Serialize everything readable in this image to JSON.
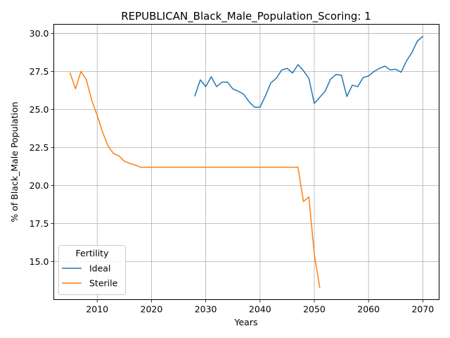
{
  "chart_data": {
    "type": "line",
    "title": "REPUBLICAN_Black_Male_Population_Scoring: 1",
    "xlabel": "Years",
    "ylabel": "% of Black_Male Population",
    "xlim": [
      2002,
      2073
    ],
    "ylim": [
      12.5,
      30.6
    ],
    "xticks": [
      2010,
      2020,
      2030,
      2040,
      2050,
      2060,
      2070
    ],
    "yticks": [
      15.0,
      17.5,
      20.0,
      22.5,
      25.0,
      27.5,
      30.0
    ],
    "ytick_labels": [
      "15.0",
      "17.5",
      "20.0",
      "22.5",
      "25.0",
      "27.5",
      "30.0"
    ],
    "grid": true,
    "legend": {
      "title": "Fertility",
      "placement": "lower-left"
    },
    "series": [
      {
        "name": "Ideal",
        "color": "#1f77b4",
        "x": [
          2028,
          2029,
          2030,
          2031,
          2032,
          2033,
          2034,
          2035,
          2036,
          2037,
          2038,
          2039,
          2040,
          2041,
          2042,
          2043,
          2044,
          2045,
          2046,
          2047,
          2048,
          2049,
          2050,
          2051,
          2052,
          2053,
          2054,
          2055,
          2056,
          2057,
          2058,
          2059,
          2060,
          2061,
          2062,
          2063,
          2064,
          2065,
          2066,
          2067,
          2068,
          2069,
          2070
        ],
        "y": [
          25.9,
          26.95,
          26.5,
          27.15,
          26.5,
          26.8,
          26.8,
          26.35,
          26.2,
          26.0,
          25.5,
          25.15,
          25.15,
          25.9,
          26.75,
          27.05,
          27.6,
          27.7,
          27.4,
          27.95,
          27.55,
          27.05,
          25.4,
          25.8,
          26.2,
          27.0,
          27.3,
          27.25,
          25.85,
          26.6,
          26.5,
          27.1,
          27.2,
          27.5,
          27.7,
          27.85,
          27.6,
          27.65,
          27.45,
          28.2,
          28.75,
          29.5,
          29.8
        ]
      },
      {
        "name": "Sterile",
        "color": "#ff7f0e",
        "x": [
          2005,
          2006,
          2007,
          2008,
          2009,
          2010,
          2011,
          2012,
          2013,
          2014,
          2015,
          2016,
          2017,
          2018,
          2019,
          2020,
          2025,
          2030,
          2035,
          2040,
          2045,
          2047,
          2048,
          2049,
          2050,
          2051
        ],
        "y": [
          27.4,
          26.35,
          27.5,
          26.95,
          25.6,
          24.6,
          23.5,
          22.6,
          22.1,
          21.95,
          21.6,
          21.45,
          21.35,
          21.2,
          21.2,
          21.2,
          21.2,
          21.2,
          21.2,
          21.2,
          21.2,
          21.2,
          18.95,
          19.25,
          15.5,
          13.3
        ]
      }
    ]
  }
}
